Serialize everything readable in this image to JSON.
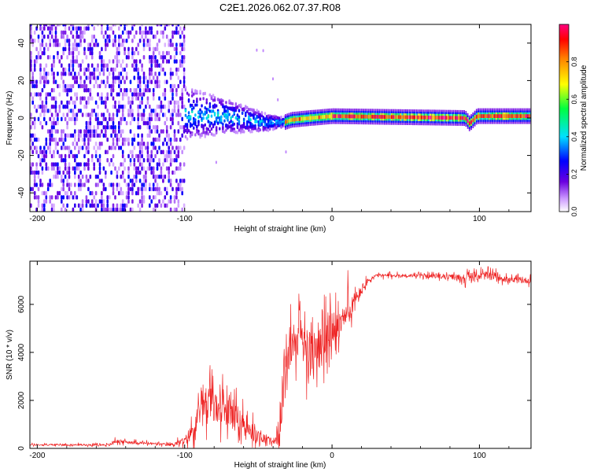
{
  "figure_title": "C2E1.2026.062.07.37.R08",
  "colors": {
    "snr_line": "#ee2222",
    "spectrum_low": "#ffffff",
    "spectrum_mid": "#6a00e0",
    "spectrum_high": "#ff0040"
  },
  "chart_data": [
    {
      "type": "heatmap",
      "title": "",
      "xlabel": "Height of straight line (km)",
      "ylabel": "Frequency (Hz)",
      "xlim": [
        -205,
        135
      ],
      "ylim": [
        -50,
        50
      ],
      "xticks": [
        -200,
        -100,
        0,
        100
      ],
      "yticks": [
        -40,
        -20,
        0,
        20,
        40
      ],
      "colorbar": {
        "label": "Normalized spectral amplitude",
        "range": [
          0.0,
          1.0
        ],
        "ticks": [
          0.0,
          0.2,
          0.4,
          0.6,
          0.8
        ]
      },
      "ridge": [
        {
          "x": -100,
          "f": 2
        },
        {
          "x": -70,
          "f": 0
        },
        {
          "x": -45,
          "f": -3
        },
        {
          "x": -35,
          "f": -3
        },
        {
          "x": -28,
          "f": -1
        },
        {
          "x": -15,
          "f": 0
        },
        {
          "x": 0,
          "f": 1
        },
        {
          "x": 90,
          "f": 0
        },
        {
          "x": 93,
          "f": -3
        },
        {
          "x": 98,
          "f": 1
        },
        {
          "x": 135,
          "f": 1
        }
      ]
    },
    {
      "type": "line",
      "title": "",
      "xlabel": "Height of straight line (km)",
      "ylabel": "SNR (10 * v/v)",
      "xlim": [
        -205,
        135
      ],
      "ylim": [
        0,
        7800
      ],
      "xticks": [
        -200,
        -100,
        0,
        100
      ],
      "yticks": [
        0,
        2000,
        4000,
        6000
      ],
      "series": [
        {
          "name": "SNR",
          "x": [
            -205,
            -150,
            -148,
            -110,
            -100,
            -90,
            -85,
            -80,
            -75,
            -70,
            -60,
            -55,
            -40,
            -36,
            -33,
            -30,
            -28,
            -25,
            -20,
            -15,
            -10,
            -5,
            0,
            5,
            10,
            15,
            20,
            25,
            30,
            40,
            60,
            80,
            90,
            100,
            110,
            120,
            135
          ],
          "y": [
            150,
            150,
            300,
            150,
            300,
            1200,
            2000,
            1800,
            1600,
            1500,
            1000,
            600,
            300,
            500,
            2500,
            3500,
            4200,
            4500,
            4200,
            3800,
            4000,
            4500,
            5000,
            5200,
            5500,
            6000,
            6600,
            7000,
            7200,
            7200,
            7200,
            7150,
            7100,
            7200,
            7200,
            7000,
            7000
          ],
          "noise": [
            60,
            60,
            120,
            80,
            250,
            900,
            1200,
            1100,
            1100,
            1000,
            800,
            500,
            150,
            600,
            1500,
            1200,
            1500,
            1200,
            1500,
            1500,
            1400,
            1500,
            1200,
            1100,
            1000,
            600,
            400,
            200,
            120,
            120,
            120,
            150,
            300,
            300,
            250,
            200,
            200
          ]
        }
      ]
    }
  ]
}
